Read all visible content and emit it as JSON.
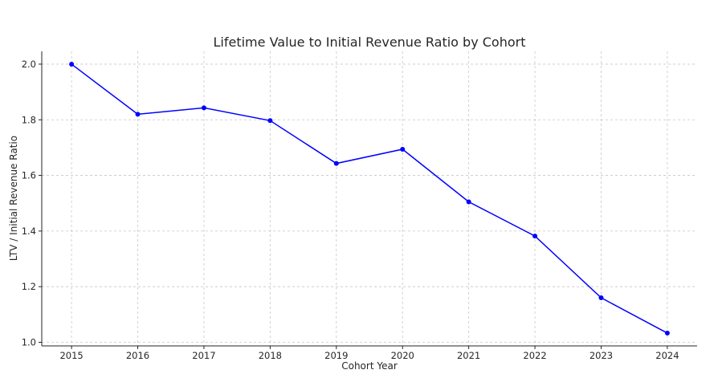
{
  "chart_data": {
    "type": "line",
    "title": "Lifetime Value to Initial Revenue Ratio by Cohort",
    "xlabel": "Cohort Year",
    "ylabel": "LTV / Initial Revenue Ratio",
    "x": [
      2015,
      2016,
      2017,
      2018,
      2019,
      2020,
      2021,
      2022,
      2023,
      2024
    ],
    "series": [
      {
        "values": [
          2.0,
          1.82,
          1.843,
          1.797,
          1.643,
          1.694,
          1.505,
          1.382,
          1.16,
          1.033
        ],
        "color": "#0000ff"
      }
    ],
    "xticks": [
      "2015",
      "2016",
      "2017",
      "2018",
      "2019",
      "2020",
      "2021",
      "2022",
      "2023",
      "2024"
    ],
    "yticks": [
      "1.0",
      "1.2",
      "1.4",
      "1.6",
      "1.8",
      "2.0"
    ],
    "xlim": [
      2014.55,
      2024.45
    ],
    "ylim": [
      0.987,
      2.046
    ],
    "grid": true,
    "marker": "circle"
  }
}
